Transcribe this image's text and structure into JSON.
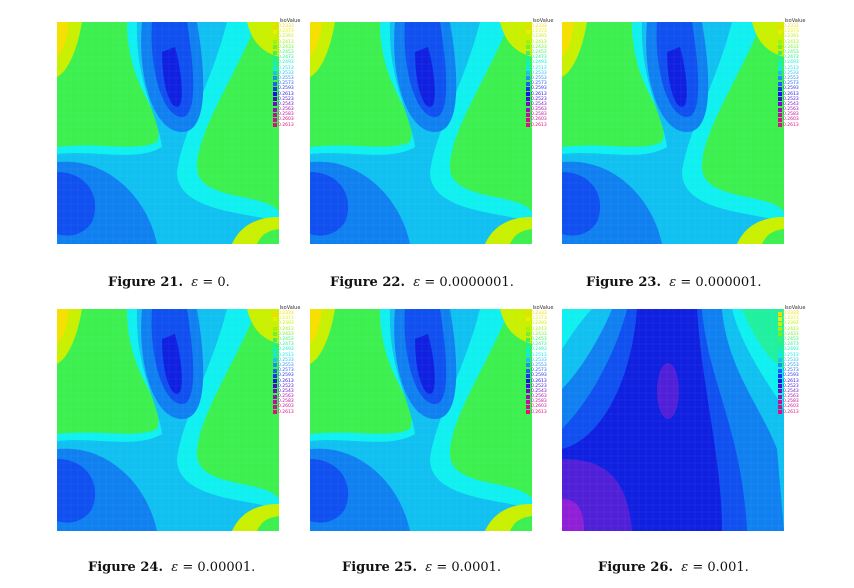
{
  "legend_title": "IsoValue",
  "legend_labels": [
    "0.2333",
    "0.2373",
    "0.2393",
    "0.2413",
    "0.2433",
    "0.2453",
    "0.2473",
    "0.2493",
    "0.2513",
    "0.2533",
    "0.2553",
    "0.2573",
    "0.2593",
    "0.2613",
    "0.2523",
    "0.2543",
    "0.2563",
    "0.2583",
    "0.2603",
    "0.2613"
  ],
  "legend_colors": [
    "#f5d800",
    "#e6f000",
    "#c8f000",
    "#a0f010",
    "#70f030",
    "#40f060",
    "#20f090",
    "#10f0c0",
    "#10e8f0",
    "#20c0f0",
    "#2090f0",
    "#2060f0",
    "#2030f0",
    "#2010e0",
    "#4010d0",
    "#7010c0",
    "#a010b0",
    "#c010a0",
    "#d01090",
    "#e01080"
  ],
  "panels": [
    {
      "figure_label": "Figure 21.",
      "eq_symbol": "ε",
      "eq_sign": " = ",
      "eq_value": "0."
    },
    {
      "figure_label": "Figure 22.",
      "eq_symbol": "ε",
      "eq_sign": " = ",
      "eq_value": "0.0000001."
    },
    {
      "figure_label": "Figure 23.",
      "eq_symbol": "ε",
      "eq_sign": " = ",
      "eq_value": "0.000001."
    },
    {
      "figure_label": "Figure 24.",
      "eq_symbol": "ε",
      "eq_sign": " = ",
      "eq_value": "0.00001."
    },
    {
      "figure_label": "Figure 25.",
      "eq_symbol": "ε",
      "eq_sign": " = ",
      "eq_value": "0.0001."
    },
    {
      "figure_label": "Figure 26.",
      "eq_symbol": "ε",
      "eq_sign": " = ",
      "eq_value": "0.001."
    }
  ],
  "colors": {
    "yellow": "#f5e000",
    "yellow_green": "#c8f000",
    "green": "#3cf050",
    "green_cyan": "#20f0a0",
    "cyan": "#10f0f0",
    "light_blue": "#10c0f0",
    "mid_blue": "#1080f0",
    "blue": "#1050f0",
    "deep_blue": "#1020e0",
    "violet_blue": "#5020d8",
    "violet": "#9020d8"
  }
}
